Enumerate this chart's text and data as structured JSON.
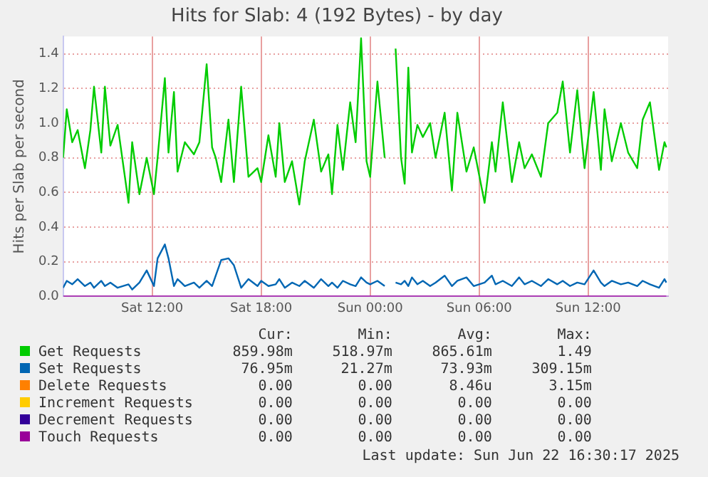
{
  "chart_data": {
    "type": "line",
    "title": "Hits for Slab: 4 (192 Bytes) - by day",
    "ylabel": "Hits per Slab per second",
    "x": [
      "2025-06-21T07:06",
      "2025-06-21T07:18",
      "2025-06-21T07:36",
      "2025-06-21T07:54",
      "2025-06-21T08:18",
      "2025-06-21T08:36",
      "2025-06-21T08:48",
      "2025-06-21T09:12",
      "2025-06-21T09:24",
      "2025-06-21T09:42",
      "2025-06-21T10:06",
      "2025-06-21T10:42",
      "2025-06-21T10:54",
      "2025-06-21T11:18",
      "2025-06-21T11:42",
      "2025-06-21T12:06",
      "2025-06-21T12:18",
      "2025-06-21T12:42",
      "2025-06-21T12:54",
      "2025-06-21T13:12",
      "2025-06-21T13:24",
      "2025-06-21T13:48",
      "2025-06-21T14:18",
      "2025-06-21T14:36",
      "2025-06-21T15:00",
      "2025-06-21T15:18",
      "2025-06-21T15:30",
      "2025-06-21T15:48",
      "2025-06-21T16:12",
      "2025-06-21T16:30",
      "2025-06-21T16:54",
      "2025-06-21T17:18",
      "2025-06-21T17:48",
      "2025-06-21T18:00",
      "2025-06-21T18:24",
      "2025-06-21T18:48",
      "2025-06-21T19:00",
      "2025-06-21T19:18",
      "2025-06-21T19:42",
      "2025-06-21T20:06",
      "2025-06-21T20:24",
      "2025-06-21T20:54",
      "2025-06-21T21:18",
      "2025-06-21T21:42",
      "2025-06-21T21:54",
      "2025-06-21T22:12",
      "2025-06-21T22:30",
      "2025-06-21T22:54",
      "2025-06-21T23:12",
      "2025-06-21T23:30",
      "2025-06-21T23:48",
      "2025-06-22T00:00",
      "2025-06-22T00:24",
      "2025-06-22T00:48",
      "2025-06-22T01:06",
      "2025-06-22T01:24",
      "2025-06-22T01:42",
      "2025-06-22T01:54",
      "2025-06-22T02:06",
      "2025-06-22T02:18",
      "2025-06-22T02:36",
      "2025-06-22T02:54",
      "2025-06-22T03:18",
      "2025-06-22T03:36",
      "2025-06-22T04:06",
      "2025-06-22T04:30",
      "2025-06-22T04:48",
      "2025-06-22T05:18",
      "2025-06-22T05:42",
      "2025-06-22T06:18",
      "2025-06-22T06:42",
      "2025-06-22T06:54",
      "2025-06-22T07:18",
      "2025-06-22T07:48",
      "2025-06-22T08:12",
      "2025-06-22T08:30",
      "2025-06-22T08:54",
      "2025-06-22T09:24",
      "2025-06-22T09:48",
      "2025-06-22T10:18",
      "2025-06-22T10:36",
      "2025-06-22T11:00",
      "2025-06-22T11:24",
      "2025-06-22T11:48",
      "2025-06-22T12:18",
      "2025-06-22T12:42",
      "2025-06-22T12:54",
      "2025-06-22T13:18",
      "2025-06-22T13:48",
      "2025-06-22T14:12",
      "2025-06-22T14:42",
      "2025-06-22T15:00",
      "2025-06-22T15:24",
      "2025-06-22T15:54",
      "2025-06-22T16:12",
      "2025-06-22T16:18"
    ],
    "series": [
      {
        "name": "Get Requests",
        "color": "#00cc00",
        "values": [
          0.8,
          1.08,
          0.89,
          0.96,
          0.74,
          0.96,
          1.21,
          0.83,
          1.21,
          0.87,
          0.99,
          0.54,
          0.89,
          0.59,
          0.8,
          0.59,
          0.8,
          1.26,
          0.83,
          1.18,
          0.72,
          0.89,
          0.82,
          0.89,
          1.34,
          0.86,
          0.8,
          0.66,
          1.02,
          0.66,
          1.21,
          0.69,
          0.74,
          0.66,
          0.93,
          0.69,
          1.0,
          0.66,
          0.78,
          0.53,
          0.78,
          1.02,
          0.72,
          0.82,
          0.59,
          0.99,
          0.73,
          1.12,
          0.89,
          1.49,
          0.78,
          0.69,
          1.24,
          0.8,
          null,
          1.43,
          0.8,
          0.65,
          1.32,
          0.83,
          0.99,
          0.92,
          1.0,
          0.8,
          1.06,
          0.61,
          1.06,
          0.72,
          0.86,
          0.54,
          0.89,
          0.72,
          1.12,
          0.66,
          0.89,
          0.74,
          0.82,
          0.69,
          1.0,
          1.06,
          1.24,
          0.83,
          1.19,
          0.74,
          1.18,
          0.73,
          1.08,
          0.78,
          1.0,
          0.83,
          0.74,
          1.02,
          1.12,
          0.73,
          0.89,
          0.86
        ]
      },
      {
        "name": "Set Requests",
        "color": "#0066b3",
        "values": [
          0.05,
          0.09,
          0.07,
          0.1,
          0.06,
          0.08,
          0.05,
          0.09,
          0.06,
          0.08,
          0.05,
          0.07,
          0.04,
          0.08,
          0.15,
          0.06,
          0.22,
          0.3,
          0.22,
          0.06,
          0.1,
          0.06,
          0.08,
          0.05,
          0.09,
          0.06,
          0.12,
          0.21,
          0.22,
          0.18,
          0.05,
          0.1,
          0.06,
          0.09,
          0.06,
          0.07,
          0.1,
          0.05,
          0.08,
          0.06,
          0.09,
          0.05,
          0.1,
          0.06,
          0.08,
          0.05,
          0.09,
          0.07,
          0.06,
          0.11,
          0.08,
          0.07,
          0.09,
          0.06,
          null,
          0.08,
          0.07,
          0.09,
          0.06,
          0.11,
          0.07,
          0.09,
          0.06,
          0.08,
          0.12,
          0.06,
          0.09,
          0.11,
          0.06,
          0.08,
          0.12,
          0.07,
          0.09,
          0.06,
          0.11,
          0.07,
          0.09,
          0.06,
          0.1,
          0.07,
          0.09,
          0.06,
          0.08,
          0.07,
          0.15,
          0.08,
          0.06,
          0.09,
          0.07,
          0.08,
          0.06,
          0.09,
          0.07,
          0.05,
          0.1,
          0.08
        ]
      },
      {
        "name": "Delete Requests",
        "color": "#ff8000",
        "values": [
          null,
          null,
          null,
          null,
          null,
          null,
          null,
          null,
          null,
          null,
          null,
          null,
          null,
          null,
          null,
          null,
          null,
          null,
          null,
          null,
          null,
          null,
          null,
          null,
          null,
          null,
          null,
          null,
          null,
          null,
          null,
          null,
          null,
          null,
          null,
          null,
          null,
          null,
          null,
          null,
          null,
          null,
          null,
          null,
          null,
          null,
          null,
          null,
          null,
          null,
          null,
          null,
          null,
          null,
          null,
          null,
          null,
          null,
          null,
          null,
          null,
          null,
          null,
          null,
          null,
          null,
          null,
          null,
          null,
          null,
          null,
          null,
          null,
          null,
          null,
          null,
          null,
          null,
          null,
          null,
          null,
          null,
          null,
          null,
          null,
          null,
          null,
          null,
          null,
          null,
          null,
          null,
          null,
          null,
          null,
          null
        ]
      },
      {
        "name": "Increment Requests",
        "color": "#ffcc00",
        "values": [
          null,
          null,
          null,
          null,
          null,
          null,
          null,
          null,
          null,
          null,
          null,
          null,
          null,
          null,
          null,
          null,
          null,
          null,
          null,
          null,
          null,
          null,
          null,
          null,
          null,
          null,
          null,
          null,
          null,
          null,
          null,
          null,
          null,
          null,
          null,
          null,
          null,
          null,
          null,
          null,
          null,
          null,
          null,
          null,
          null,
          null,
          null,
          null,
          null,
          null,
          null,
          null,
          null,
          null,
          null,
          null,
          null,
          null,
          null,
          null,
          null,
          null,
          null,
          null,
          null,
          null,
          null,
          null,
          null,
          null,
          null,
          null,
          null,
          null,
          null,
          null,
          null,
          null,
          null,
          null,
          null,
          null,
          null,
          null,
          null,
          null,
          null,
          null,
          null,
          null,
          null,
          null,
          null,
          null,
          null,
          null
        ]
      },
      {
        "name": "Decrement Requests",
        "color": "#330099",
        "values": [
          null,
          null,
          null,
          null,
          null,
          null,
          null,
          null,
          null,
          null,
          null,
          null,
          null,
          null,
          null,
          null,
          null,
          null,
          null,
          null,
          null,
          null,
          null,
          null,
          null,
          null,
          null,
          null,
          null,
          null,
          null,
          null,
          null,
          null,
          null,
          null,
          null,
          null,
          null,
          null,
          null,
          null,
          null,
          null,
          null,
          null,
          null,
          null,
          null,
          null,
          null,
          null,
          null,
          null,
          null,
          null,
          null,
          null,
          null,
          null,
          null,
          null,
          null,
          null,
          null,
          null,
          null,
          null,
          null,
          null,
          null,
          null,
          null,
          null,
          null,
          null,
          null,
          null,
          null,
          null,
          null,
          null,
          null,
          null,
          null,
          null,
          null,
          null,
          null,
          null,
          null,
          null,
          null,
          null,
          null,
          null
        ]
      },
      {
        "name": "Touch Requests",
        "color": "#990099",
        "x": [
          "2025-06-21T07:06",
          "2025-06-22T16:18"
        ],
        "values": [
          0,
          0
        ]
      }
    ],
    "xlim": [
      "2025-06-21T07:06",
      "2025-06-22T16:24"
    ],
    "xticks": [
      {
        "value": "2025-06-21T12:00",
        "label": "Sat 12:00"
      },
      {
        "value": "2025-06-21T18:00",
        "label": "Sat 18:00"
      },
      {
        "value": "2025-06-22T00:00",
        "label": "Sun 00:00"
      },
      {
        "value": "2025-06-22T06:00",
        "label": "Sun 06:00"
      },
      {
        "value": "2025-06-22T12:00",
        "label": "Sun 12:00"
      }
    ],
    "ylim": [
      0,
      1.5
    ],
    "yticks": [
      {
        "value": 0,
        "label": "0.0"
      },
      {
        "value": 0.2,
        "label": "0.2"
      },
      {
        "value": 0.4,
        "label": "0.4"
      },
      {
        "value": 0.6,
        "label": "0.6"
      },
      {
        "value": 0.8,
        "label": "0.8"
      },
      {
        "value": 1,
        "label": "1.0"
      },
      {
        "value": 1.2,
        "label": "1.2"
      },
      {
        "value": 1.4,
        "label": "1.4"
      }
    ],
    "grid": true,
    "legend": "bottom",
    "marker": "none",
    "line_style": "solid",
    "annotations": [
      "Cur:",
      "Min:",
      "Avg:",
      "Max:",
      "859.98m",
      "518.97m",
      "865.61m",
      "1.49",
      "76.95m",
      "21.27m",
      "73.93m",
      "309.15m",
      "0.00",
      "0.00",
      "8.46u",
      "3.15m",
      "0.00",
      "0.00",
      "0.00",
      "0.00",
      "0.00",
      "0.00",
      "0.00",
      "0.00",
      "0.00",
      "0.00",
      "0.00",
      "0.00",
      "Last update: Sun Jun 22 16:30:17 2025"
    ]
  }
}
